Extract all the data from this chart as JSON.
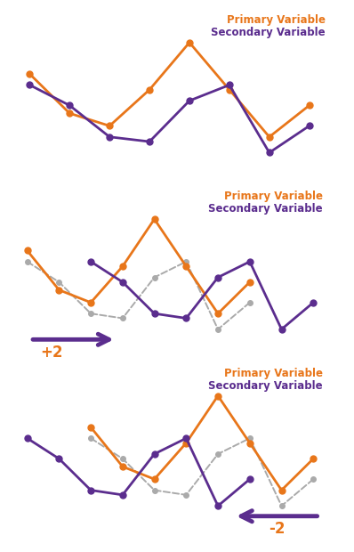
{
  "primary_color": "#E8761A",
  "secondary_color": "#5B2D8E",
  "ghost_color": "#AAAAAA",
  "background_color": "#FFFFFF",
  "primary_label": "Primary Variable",
  "secondary_label": "Secondary Variable",
  "px": [
    0,
    1,
    2,
    3,
    4,
    5,
    6,
    7
  ],
  "py": [
    7.5,
    5.0,
    4.2,
    6.5,
    9.5,
    6.5,
    3.5,
    5.5
  ],
  "sx": [
    0,
    1,
    2,
    3,
    4,
    5,
    6,
    7
  ],
  "sy": [
    6.8,
    5.5,
    3.5,
    3.2,
    5.8,
    6.8,
    2.5,
    4.2
  ],
  "arrow_color": "#5B2D8E",
  "label_fontsize": 8.5,
  "plus2_label": "+2",
  "minus2_label": "-2",
  "plus2_color": "#E8761A",
  "minus2_color": "#E8761A"
}
